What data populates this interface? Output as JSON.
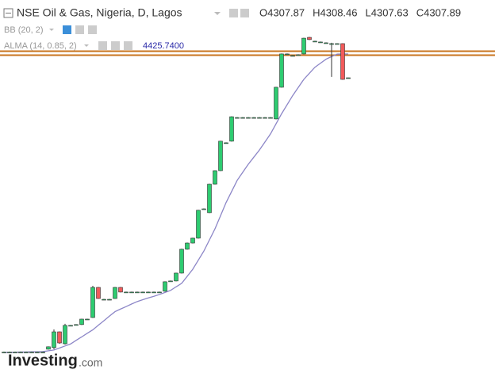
{
  "chart_data": {
    "type": "candlestick",
    "title": "NSE Oil & Gas, Nigeria, D, Lagos",
    "ohlc_header": [
      {
        "label": "O",
        "value": 4307.87
      },
      {
        "label": "H",
        "value": 4308.46
      },
      {
        "label": "L",
        "value": 4307.63
      },
      {
        "label": "C",
        "value": 4307.89
      }
    ],
    "indicators": [
      {
        "name": "BB (20, 2)"
      },
      {
        "name": "ALMA (14, 0.85, 2)",
        "value": {
          "value": 4425.74,
          "label": "4425.7400"
        }
      }
    ],
    "ylim": [
      2767,
      4693
    ],
    "up_color": "#2ecc71",
    "down_color": "#f25a5a",
    "open": [
      2950,
      2950,
      2950,
      2950,
      2950,
      2950,
      2950,
      2950,
      2964,
      2972,
      3050,
      2991,
      3082,
      3086,
      3086,
      3113,
      3121,
      3270,
      3211,
      3211,
      3215,
      3270,
      3247,
      3247,
      3247,
      3247,
      3247,
      3247,
      3247,
      3251,
      3302,
      3302,
      3341,
      3459,
      3490,
      3514,
      3659,
      3640,
      3781,
      3848,
      3986,
      3994,
      4111,
      4111,
      4111,
      4111,
      4111,
      4111,
      4111,
      4104,
      4261,
      4426,
      4418,
      4422,
      4426,
      4508,
      4489,
      4485,
      4481,
      4477,
      4477,
      4477,
      4307.87
    ],
    "high": [
      2952,
      2952,
      2952,
      2952,
      2952,
      2952,
      2952,
      2952,
      2978,
      3062,
      3052,
      3090,
      3084,
      3088,
      3115,
      3115,
      3278,
      3272,
      3213,
      3213,
      3272,
      3272,
      3249,
      3249,
      3249,
      3249,
      3249,
      3249,
      3249,
      3300,
      3304,
      3343,
      3461,
      3492,
      3516,
      3654,
      3661,
      3783,
      3850,
      3996,
      3988,
      4117,
      4113,
      4113,
      4113,
      4113,
      4113,
      4113,
      4113,
      4263,
      4428,
      4428,
      4420,
      4424,
      4506,
      4510,
      4491,
      4487,
      4483,
      4481,
      4479,
      4479,
      4308.46
    ],
    "low": [
      2948,
      2948,
      2948,
      2948,
      2948,
      2948,
      2948,
      2948,
      2962,
      2964,
      2991,
      2987,
      3080,
      3084,
      3084,
      3111,
      3119,
      3213,
      3209,
      3209,
      3213,
      3245,
      3245,
      3245,
      3245,
      3245,
      3245,
      3245,
      3245,
      3249,
      3300,
      3300,
      3339,
      3457,
      3488,
      3512,
      3657,
      3638,
      3779,
      3846,
      3984,
      3992,
      4109,
      4109,
      4109,
      4109,
      4109,
      4109,
      4109,
      4102,
      4259,
      4424,
      4416,
      4420,
      4424,
      4495,
      4487,
      4483,
      4479,
      4312,
      4475,
      4298,
      4307.63
    ],
    "close": [
      2950,
      2950,
      2950,
      2950,
      2950,
      2950,
      2950,
      2950,
      2976,
      3050,
      2995,
      3082,
      3082,
      3086,
      3113,
      3113,
      3270,
      3215,
      3211,
      3211,
      3270,
      3247,
      3247,
      3247,
      3247,
      3247,
      3247,
      3247,
      3247,
      3298,
      3302,
      3341,
      3459,
      3490,
      3514,
      3652,
      3659,
      3781,
      3848,
      3994,
      3986,
      4115,
      4111,
      4111,
      4111,
      4111,
      4111,
      4111,
      4111,
      4261,
      4426,
      4426,
      4418,
      4422,
      4504,
      4497,
      4489,
      4485,
      4481,
      4477,
      4477,
      4300,
      4307.89
    ],
    "lines": [
      {
        "name": "ALMA (14, 0.85, 2)",
        "color": "#8c86c7",
        "values": [
          2948,
          2949,
          2949,
          2950,
          2950,
          2951,
          2951,
          2952,
          2956,
          2960,
          2970,
          2980,
          2990,
          3008,
          3025,
          3043,
          3060,
          3083,
          3105,
          3128,
          3150,
          3163,
          3175,
          3188,
          3200,
          3209,
          3218,
          3226,
          3235,
          3245,
          3255,
          3273,
          3290,
          3325,
          3360,
          3405,
          3450,
          3505,
          3560,
          3625,
          3690,
          3745,
          3800,
          3840,
          3880,
          3915,
          3950,
          3990,
          4030,
          4080,
          4130,
          4175,
          4220,
          4260,
          4300,
          4330,
          4360,
          4380,
          4400,
          4413,
          4425,
          4426,
          4425.74
        ]
      }
    ],
    "logo": {
      "brand": "Investing",
      "suffix": ".com"
    }
  }
}
